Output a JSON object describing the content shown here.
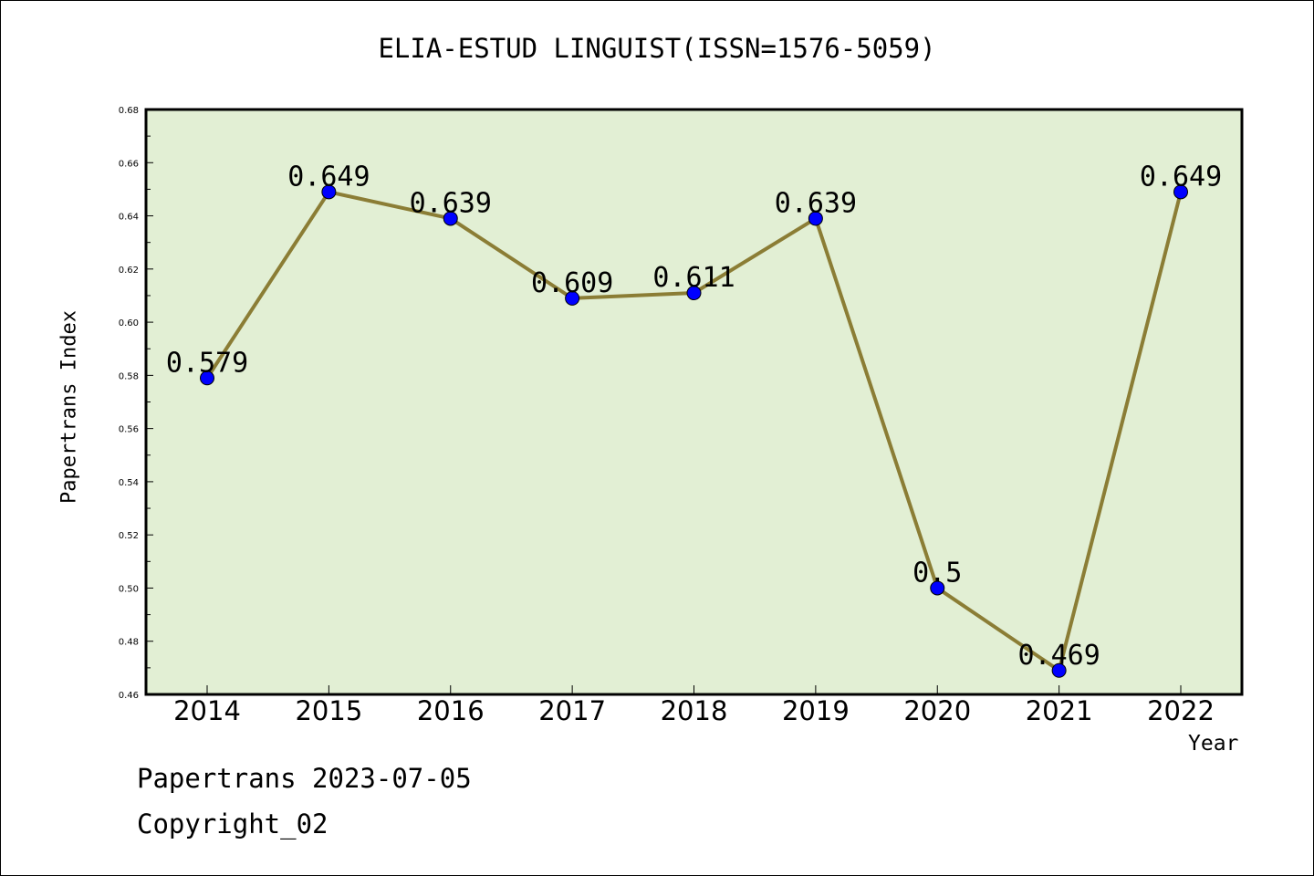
{
  "chart_data": {
    "type": "line",
    "title": "ELIA-ESTUD LINGUIST(ISSN=1576-5059)",
    "xlabel": "Year",
    "ylabel": "Papertrans Index",
    "x": [
      "2014",
      "2015",
      "2016",
      "2017",
      "2018",
      "2019",
      "2020",
      "2021",
      "2022"
    ],
    "values": [
      0.579,
      0.649,
      0.639,
      0.609,
      0.611,
      0.639,
      0.5,
      0.469,
      0.649
    ],
    "data_labels": [
      "0.579",
      "0.649",
      "0.639",
      "0.609",
      "0.611",
      "0.639",
      "0.5",
      "0.469",
      "0.649"
    ],
    "ylim": [
      0.46,
      0.68
    ],
    "yticks": [
      "0.46",
      "0.48",
      "0.50",
      "0.52",
      "0.54",
      "0.56",
      "0.58",
      "0.60",
      "0.62",
      "0.64",
      "0.66",
      "0.68"
    ],
    "grid": false,
    "colors": {
      "plot_bg": "#e2efd4",
      "line": "#8b7d35",
      "marker": "#0000ff"
    }
  },
  "footer": {
    "line1": "Papertrans 2023-07-05",
    "line2": "Copyright_02"
  }
}
